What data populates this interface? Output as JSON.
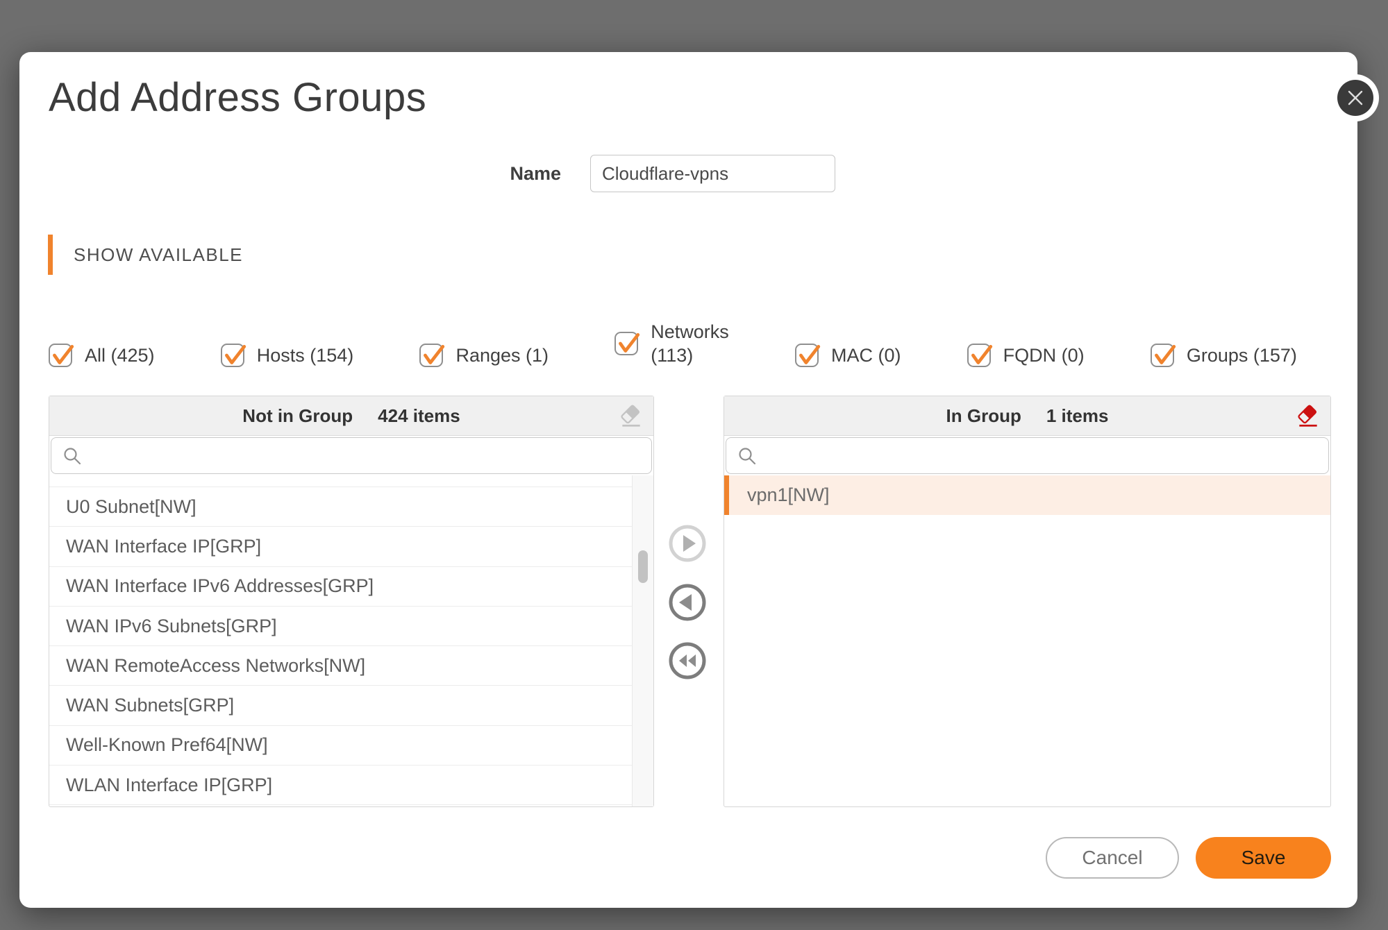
{
  "modal": {
    "title": "Add Address Groups"
  },
  "name_field": {
    "label": "Name",
    "value": "Cloudflare-vpns"
  },
  "section": {
    "title": "SHOW AVAILABLE"
  },
  "filters": {
    "items": [
      {
        "label": "All (425)",
        "label2": ""
      },
      {
        "label": "Hosts (154)",
        "label2": ""
      },
      {
        "label": "Ranges (1)",
        "label2": ""
      },
      {
        "label": "Networks",
        "label2": "(113)"
      },
      {
        "label": "MAC (0)",
        "label2": ""
      },
      {
        "label": "FQDN (0)",
        "label2": ""
      },
      {
        "label": "Groups (157)",
        "label2": ""
      }
    ]
  },
  "left_panel": {
    "title": "Not in Group",
    "count": "424 items",
    "items": [
      "U0 Subnet[NW]",
      "WAN Interface IP[GRP]",
      "WAN Interface IPv6 Addresses[GRP]",
      "WAN IPv6 Subnets[GRP]",
      "WAN RemoteAccess Networks[NW]",
      "WAN Subnets[GRP]",
      "Well-Known Pref64[NW]",
      "WLAN Interface IP[GRP]"
    ]
  },
  "right_panel": {
    "title": "In Group",
    "count": "1 items",
    "items": [
      "vpn1[NW]"
    ]
  },
  "footer": {
    "cancel_label": "Cancel",
    "save_label": "Save"
  },
  "colors": {
    "accent": "#f0832d",
    "save": "#f8821d",
    "selected-bg": "#fdeee4",
    "eraser-red": "#cc1111",
    "overlay": "#6e6e6e"
  }
}
